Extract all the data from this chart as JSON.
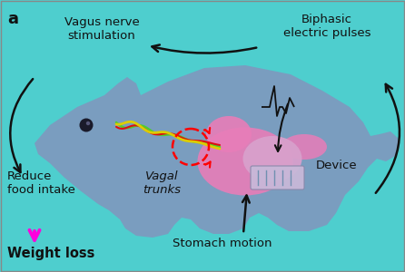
{
  "bg_color": "#4ecece",
  "mouse_body_color": "#7a9dbf",
  "stomach_color": "#e87db8",
  "device_box_color": "#c8b8d8",
  "device_screen_color": "#b8c8e0",
  "nerve_green": "#50cc30",
  "nerve_red": "#dd1010",
  "nerve_yellow": "#ddcc00",
  "waveform_color": "#111111",
  "arrow_color": "#111111",
  "magenta_arrow": "#ff00dd",
  "text_color": "#111111",
  "label_a": "a",
  "label_vagus": "Vagus nerve\nstimulation",
  "label_biphasic": "Biphasic\nelectric pulses",
  "label_vagal": "Vagal\ntrunks",
  "label_device": "Device",
  "label_reduce": "Reduce\nfood intake",
  "label_weight": "Weight loss",
  "label_stomach": "Stomach motion",
  "label_fontsize": 9.5,
  "bold_fontsize": 10.5
}
